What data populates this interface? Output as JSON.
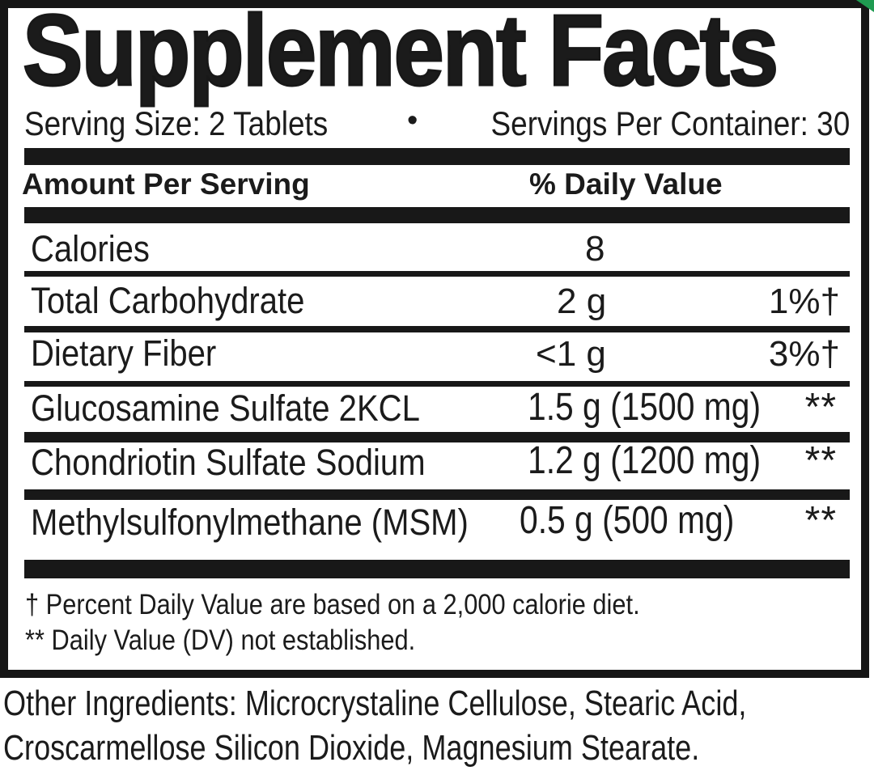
{
  "label": {
    "title": "Supplement Facts",
    "serving": {
      "size": "Serving Size: 2 Tablets",
      "bullet": "•",
      "per_container": "Servings Per Container: 30"
    },
    "columns": {
      "amount_header": "Amount Per Serving",
      "daily_value_header": "% Daily Value"
    },
    "rows": [
      {
        "name": "Calories",
        "amount": "8",
        "dv": ""
      },
      {
        "name": "Total Carbohydrate",
        "amount": "2 g",
        "dv": "1%†"
      },
      {
        "name": "Dietary Fiber",
        "amount": "<1 g",
        "dv": "3%†"
      },
      {
        "name": "Glucosamine Sulfate 2KCL",
        "amount": "1.5 g (1500 mg)",
        "dv": "**"
      },
      {
        "name": "Chondriotin Sulfate Sodium",
        "amount": "1.2 g (1200 mg)",
        "dv": "**"
      },
      {
        "name": "Methylsulfonylmethane (MSM)",
        "amount": "0.5 g (500 mg)",
        "dv": "**"
      }
    ],
    "footnotes": {
      "dagger": "† Percent Daily Value are based on a 2,000 calorie diet.",
      "asterisk": "** Daily Value (DV) not established."
    },
    "other_ingredients": {
      "line1": "Other Ingredients: Microcrystaline Cellulose, Stearic Acid,",
      "line2": "Croscarmellose Silicon Dioxide, Magnesium Stearate."
    },
    "colors": {
      "ink": "#1b1b1b",
      "rule": "#181818",
      "background": "#ffffff",
      "corner_accent": "#1f9b51"
    }
  }
}
